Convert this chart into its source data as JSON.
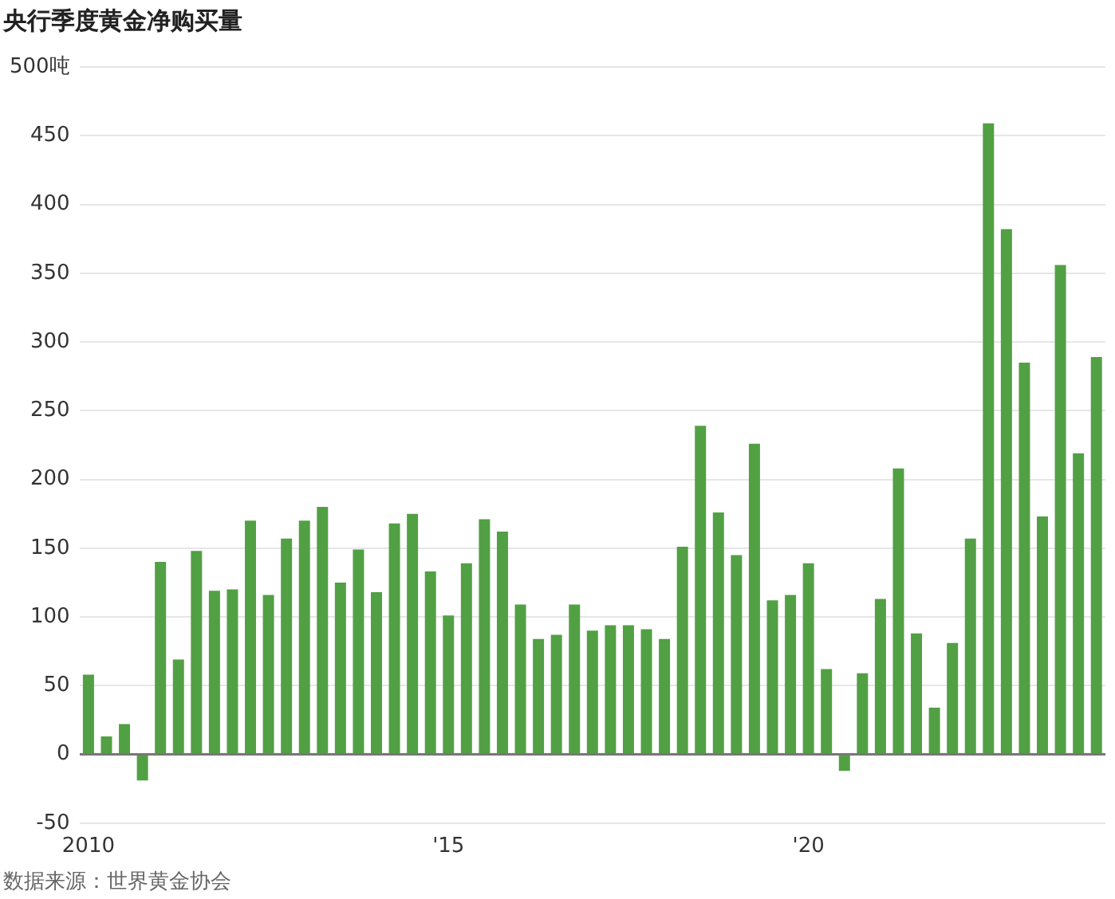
{
  "chart_data": {
    "type": "bar",
    "title": "央行季度黄金净购买量",
    "categories": [
      "2010",
      null,
      null,
      null,
      null,
      null,
      null,
      null,
      null,
      null,
      null,
      null,
      null,
      null,
      null,
      null,
      null,
      null,
      null,
      null,
      "'15",
      null,
      null,
      null,
      null,
      null,
      null,
      null,
      null,
      null,
      null,
      null,
      null,
      null,
      null,
      null,
      null,
      null,
      null,
      null,
      "'20",
      null,
      null,
      null,
      null,
      null,
      null,
      null,
      null,
      null,
      null,
      null,
      null,
      null,
      null,
      null,
      null
    ],
    "values": [
      58,
      13,
      22,
      -19,
      140,
      69,
      148,
      119,
      120,
      170,
      116,
      157,
      170,
      180,
      125,
      149,
      118,
      168,
      175,
      133,
      101,
      139,
      171,
      162,
      109,
      84,
      87,
      109,
      90,
      94,
      94,
      91,
      84,
      151,
      239,
      176,
      145,
      226,
      112,
      116,
      139,
      62,
      -12,
      59,
      113,
      208,
      88,
      34,
      81,
      157,
      459,
      382,
      285,
      173,
      356,
      219,
      289
    ],
    "color": "#52a044",
    "ylim": [
      -50,
      500
    ],
    "yticks": [
      -50,
      0,
      50,
      100,
      150,
      200,
      250,
      300,
      350,
      400,
      450,
      {
        "value": 500,
        "label": "500吨"
      }
    ],
    "grid": "y",
    "annotations": [
      "数据来源：世界黄金协会"
    ]
  }
}
